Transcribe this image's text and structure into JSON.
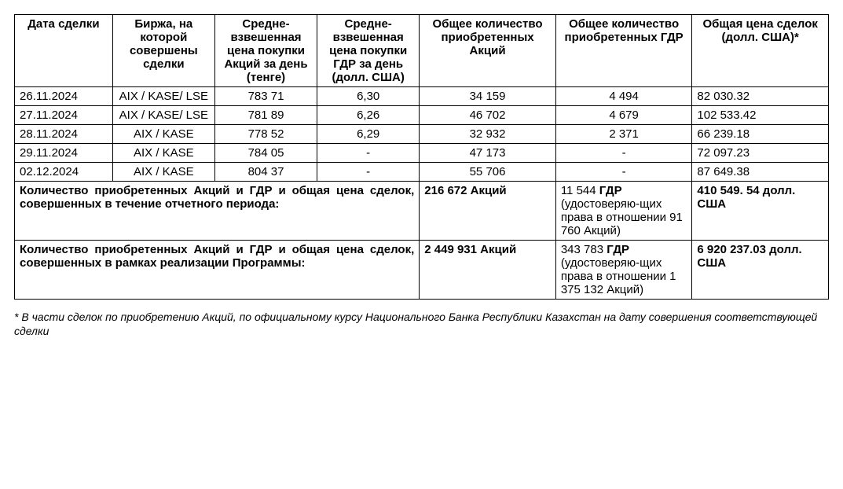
{
  "columns": {
    "date": "Дата сделки",
    "ex": "Биржа, на которой совершены сделки",
    "p1": "Средне-взвешенная цена покупки Акций за день (тенге)",
    "p2": "Средне-взвешенная цена покупки ГДР за день (долл. США)",
    "q1": "Общее количество приобретенных Акций",
    "q2": "Общее количество приобретенных ГДР",
    "tot": "Общая цена сделок (долл. США)*"
  },
  "rows": [
    {
      "date": "26.11.2024",
      "ex": "AIX / KASE/ LSE",
      "p1": "783 71",
      "p2": "6,30",
      "q1": "34 159",
      "q2": "4 494",
      "tot": "82 030.32"
    },
    {
      "date": "27.11.2024",
      "ex": "AIX / KASE/ LSE",
      "p1": "781 89",
      "p2": "6,26",
      "q1": "46 702",
      "q2": "4 679",
      "tot": "102 533.42"
    },
    {
      "date": "28.11.2024",
      "ex": "AIX / KASE",
      "p1": "778 52",
      "p2": "6,29",
      "q1": "32 932",
      "q2": "2 371",
      "tot": "66 239.18"
    },
    {
      "date": "29.11.2024",
      "ex": "AIX / KASE",
      "p1": "784 05",
      "p2": "-",
      "q1": "47 173",
      "q2": "-",
      "tot": "72 097.23"
    },
    {
      "date": "02.12.2024",
      "ex": "AIX / KASE",
      "p1": "804 37",
      "p2": "-",
      "q1": "55 706",
      "q2": "-",
      "tot": "87 649.38"
    }
  ],
  "summary1": {
    "label": "Количество приобретенных Акций и ГДР и общая цена сделок, совершенных в течение отчетного периода:",
    "q1": "216 672 Акций",
    "q2_pre": "11 544",
    "q2_bold": " ГДР",
    "q2_post": " (удостоверяю-щих права в отношении 91 760  Акций)",
    "tot": "410 549. 54 долл. США"
  },
  "summary2": {
    "label": "Количество приобретенных Акций и ГДР и общая цена сделок, совершенных в рамках реализации Программы:",
    "q1": "2 449 931 Акций",
    "q2_pre": "343 783",
    "q2_bold": " ГДР",
    "q2_post": " (удостоверяю-щих права в отношении 1 375 132 Акций)",
    "tot": "6 920 237.03 долл. США"
  },
  "footnote": "* В части сделок по приобретению Акций, по официальному курсу Национального Банка Республики Казахстан на дату совершения соответствующей сделки"
}
